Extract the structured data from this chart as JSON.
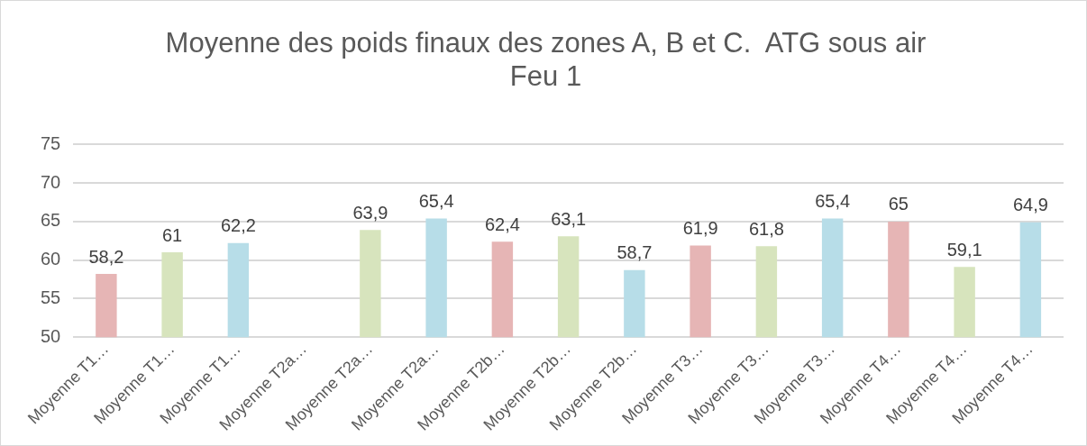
{
  "chart_data": {
    "type": "bar",
    "title": "Moyenne des poids finaux des zones A, B et C.  ATG sous air",
    "subtitle": "Feu 1",
    "categories": [
      "Moyenne T1…",
      "Moyenne T1…",
      "Moyenne T1…",
      "Moyenne T2a…",
      "Moyenne T2a…",
      "Moyenne T2a…",
      "Moyenne T2b…",
      "Moyenne T2b…",
      "Moyenne T2b…",
      "Moyenne T3…",
      "Moyenne T3…",
      "Moyenne T3…",
      "Moyenne T4…",
      "Moyenne T4…",
      "Moyenne T4…"
    ],
    "values": [
      58.2,
      61,
      62.2,
      null,
      63.9,
      65.4,
      62.4,
      63.1,
      58.7,
      61.9,
      61.8,
      65.4,
      65,
      59.1,
      64.9
    ],
    "value_labels": [
      "58,2",
      "61",
      "62,2",
      null,
      "63,9",
      "65,4",
      "62,4",
      "63,1",
      "58,7",
      "61,9",
      "61,8",
      "65,4",
      "65",
      "59,1",
      "64,9"
    ],
    "colors": [
      "#e6b5b5",
      "#d7e4bd",
      "#b7dde8",
      "#e6b5b5",
      "#d7e4bd",
      "#b7dde8",
      "#e6b5b5",
      "#d7e4bd",
      "#b7dde8",
      "#e6b5b5",
      "#d7e4bd",
      "#b7dde8",
      "#e6b5b5",
      "#d7e4bd",
      "#b7dde8"
    ],
    "ylim": [
      50,
      75
    ],
    "yticks": [
      50,
      55,
      60,
      65,
      70,
      75
    ],
    "grid": "y",
    "legend": false
  }
}
